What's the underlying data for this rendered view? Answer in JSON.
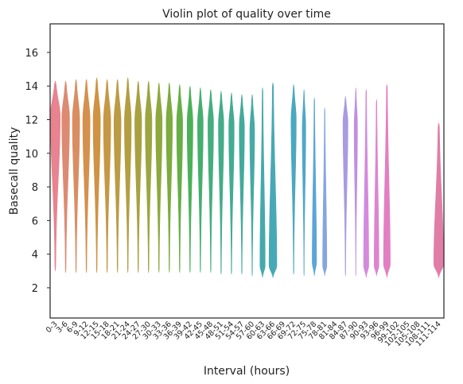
{
  "chart_data": {
    "type": "violin",
    "title": "Violin plot of quality over time",
    "xlabel": "Interval (hours)",
    "ylabel": "Basecall quality",
    "ylim": [
      0.2,
      17.7
    ],
    "yticks": [
      2,
      4,
      6,
      8,
      10,
      12,
      14,
      16
    ],
    "grid": false,
    "legend": "none",
    "categories": [
      "0-3",
      "3-6",
      "6-9",
      "9-12",
      "12-15",
      "15-18",
      "18-21",
      "21-24",
      "24-27",
      "27-30",
      "30-33",
      "33-36",
      "36-39",
      "39-42",
      "42-45",
      "45-48",
      "48-51",
      "51-54",
      "54-57",
      "57-60",
      "60-63",
      "63-66",
      "66-69",
      "69-72",
      "72-75",
      "75-78",
      "78-81",
      "81-84",
      "84-87",
      "87-90",
      "90-93",
      "93-96",
      "96-99",
      "99-102",
      "102-105",
      "105-108",
      "108-111",
      "111-114"
    ],
    "series": [
      {
        "category": "0-3",
        "min": 3.0,
        "max": 14.3,
        "mode": 12.2,
        "width": 0.95,
        "color": "#e8838f"
      },
      {
        "category": "3-6",
        "min": 2.9,
        "max": 14.3,
        "mode": 12.1,
        "width": 0.75,
        "color": "#dd8a72"
      },
      {
        "category": "6-9",
        "min": 2.9,
        "max": 14.4,
        "mode": 12.0,
        "width": 0.7,
        "color": "#d98e62"
      },
      {
        "category": "9-12",
        "min": 2.9,
        "max": 14.4,
        "mode": 12.0,
        "width": 0.7,
        "color": "#d4904d"
      },
      {
        "category": "12-15",
        "min": 2.9,
        "max": 14.5,
        "mode": 12.0,
        "width": 0.7,
        "color": "#cf9344"
      },
      {
        "category": "15-18",
        "min": 2.9,
        "max": 14.4,
        "mode": 11.9,
        "width": 0.7,
        "color": "#c69744"
      },
      {
        "category": "18-21",
        "min": 2.9,
        "max": 14.4,
        "mode": 11.9,
        "width": 0.68,
        "color": "#bb9b43"
      },
      {
        "category": "21-24",
        "min": 2.9,
        "max": 14.5,
        "mode": 11.9,
        "width": 0.66,
        "color": "#b39e42"
      },
      {
        "category": "24-27",
        "min": 2.9,
        "max": 14.3,
        "mode": 11.9,
        "width": 0.66,
        "color": "#a8a141"
      },
      {
        "category": "27-30",
        "min": 2.9,
        "max": 14.3,
        "mode": 11.9,
        "width": 0.64,
        "color": "#9ca53f"
      },
      {
        "category": "30-33",
        "min": 2.9,
        "max": 14.2,
        "mode": 11.9,
        "width": 0.62,
        "color": "#8ea83d"
      },
      {
        "category": "33-36",
        "min": 2.9,
        "max": 14.2,
        "mode": 11.9,
        "width": 0.6,
        "color": "#7dab3e"
      },
      {
        "category": "36-39",
        "min": 2.9,
        "max": 14.1,
        "mode": 11.8,
        "width": 0.58,
        "color": "#66ae45"
      },
      {
        "category": "39-42",
        "min": 2.9,
        "max": 14.0,
        "mode": 11.8,
        "width": 0.56,
        "color": "#4cb058"
      },
      {
        "category": "42-45",
        "min": 2.9,
        "max": 13.9,
        "mode": 11.8,
        "width": 0.54,
        "color": "#45ae6e"
      },
      {
        "category": "45-48",
        "min": 2.9,
        "max": 13.8,
        "mode": 11.8,
        "width": 0.54,
        "color": "#45ad7e"
      },
      {
        "category": "48-51",
        "min": 2.8,
        "max": 13.7,
        "mode": 11.7,
        "width": 0.52,
        "color": "#44ac8a"
      },
      {
        "category": "51-54",
        "min": 2.8,
        "max": 13.6,
        "mode": 11.6,
        "width": 0.52,
        "color": "#43ab94"
      },
      {
        "category": "54-57",
        "min": 2.8,
        "max": 13.5,
        "mode": 11.5,
        "width": 0.5,
        "color": "#43aa9d"
      },
      {
        "category": "57-60",
        "min": 2.7,
        "max": 13.5,
        "mode": 11.3,
        "width": 0.46,
        "color": "#44aaa5"
      },
      {
        "category": "60-63",
        "min": 2.6,
        "max": 13.9,
        "mode": 3.3,
        "width": 0.5,
        "color": "#45a9ad"
      },
      {
        "category": "63-66",
        "min": 2.6,
        "max": 14.2,
        "mode": 3.3,
        "width": 0.75,
        "color": "#47a9b6"
      },
      {
        "category": "69-72",
        "min": 2.8,
        "max": 14.1,
        "mode": 12.0,
        "width": 0.5,
        "color": "#4aa8c0"
      },
      {
        "category": "72-75",
        "min": 2.7,
        "max": 13.8,
        "mode": 11.5,
        "width": 0.34,
        "color": "#4fa7cb"
      },
      {
        "category": "75-78",
        "min": 2.7,
        "max": 13.3,
        "mode": 3.5,
        "width": 0.42,
        "color": "#5ba5d8"
      },
      {
        "category": "78-81",
        "min": 2.7,
        "max": 12.7,
        "mode": 3.3,
        "width": 0.4,
        "color": "#86a6e0"
      },
      {
        "category": "84-87",
        "min": 2.7,
        "max": 13.4,
        "mode": 11.8,
        "width": 0.48,
        "color": "#a99ae3"
      },
      {
        "category": "87-90",
        "min": 2.7,
        "max": 13.9,
        "mode": 11.6,
        "width": 0.32,
        "color": "#c08fe2"
      },
      {
        "category": "90-93",
        "min": 2.6,
        "max": 13.8,
        "mode": 3.3,
        "width": 0.5,
        "color": "#d38add"
      },
      {
        "category": "93-96",
        "min": 2.7,
        "max": 13.2,
        "mode": 3.3,
        "width": 0.46,
        "color": "#dd84d1"
      },
      {
        "category": "96-99",
        "min": 2.6,
        "max": 14.1,
        "mode": 3.4,
        "width": 0.65,
        "color": "#e27fc3"
      },
      {
        "category": "111-114",
        "min": 2.6,
        "max": 11.8,
        "mode": 3.4,
        "width": 0.95,
        "color": "#e07ea7"
      }
    ]
  }
}
